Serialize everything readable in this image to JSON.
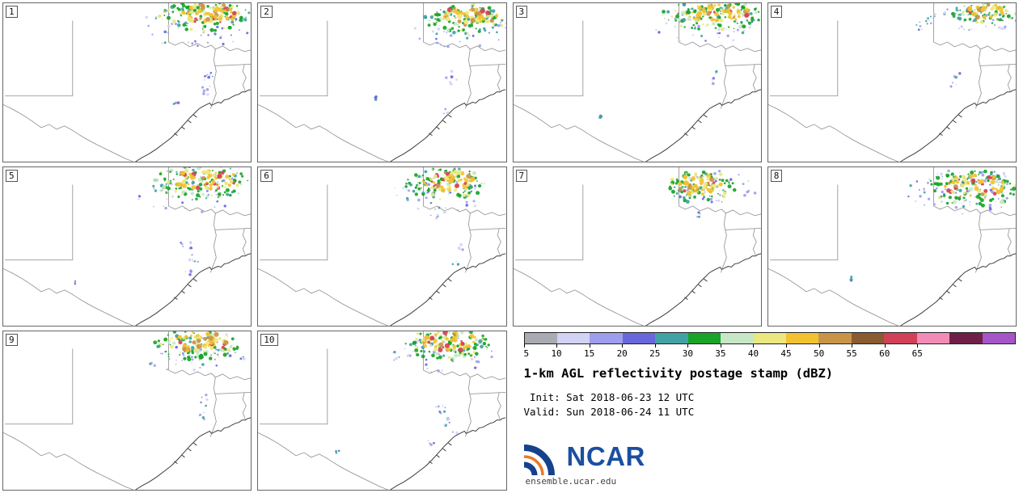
{
  "product": {
    "title": "1-km AGL reflectivity postage stamp (dBZ)",
    "init_line": " Init: Sat 2018-06-23 12 UTC",
    "valid_line": "Valid: Sun 2018-06-24 11 UTC"
  },
  "footer": {
    "logo_text": "NCAR",
    "url": "ensemble.ucar.edu"
  },
  "colorbar": {
    "ticks": [
      "5",
      "10",
      "15",
      "20",
      "25",
      "30",
      "35",
      "40",
      "45",
      "50",
      "55",
      "60",
      "65"
    ],
    "colors": [
      "#aaaab2",
      "#d2d2f4",
      "#9e9eee",
      "#6868dc",
      "#40a2a2",
      "#18a428",
      "#c6e8c6",
      "#eae87e",
      "#f2c230",
      "#ca9448",
      "#8a5a30",
      "#d24058",
      "#f28cb6",
      "#702048",
      "#a455c8"
    ]
  },
  "palettes": {
    "g": [
      "#18a428",
      "#18a428",
      "#c6e8c6",
      "#40a2a2",
      "#eae87e"
    ],
    "w": [
      "#f2c230",
      "#eae87e",
      "#ca9448",
      "#f2c230",
      "#d24058"
    ],
    "f": [
      "#9e9eee",
      "#d2d2f4",
      "#6868dc",
      "#40a2a2"
    ],
    "t": [
      "#40a2a2",
      "#6868dc"
    ]
  },
  "map": {
    "state_color": "#9a9a9a",
    "coast_color": "#3c3c3c",
    "state": [
      "M86,22 L86,117 L2,117",
      "M205,0 L205,49 L213,53 L222,49 L231,55 L241,51 L250,56 L258,53 L263,58 L272,54 L281,60 L290,57 L299,61 L307,59",
      "M263,58 L261,72 L264,86 L261,100 L264,114 L259,127 L257,133",
      "M262,79 L307,77",
      "M299,77 L297,86 L301,94 L297,103 L300,111",
      "M0,128 L12,134 L24,141 L36,149 L47,157 L57,153 L66,159 L76,155 L85,160 L94,166 L104,172 L115,178 L127,184 L139,190 L151,196 L161,200"
    ],
    "coast": [
      "M164,200 L172,195 L181,190 L190,184 L199,177 L208,170 L216,162 L224,153 L231,145 L238,138 L243,133 L248,130 L252,128 L256,126 L258,129 L262,127 L266,125 L270,126 L274,122 L279,121 L284,118 L288,116 L292,115 L296,112 L300,112 L303,110 L307,109",
      "M212,164 L216,167 M221,156 L225,159 M229,148 L233,151 M236,141 L240,144"
    ]
  },
  "panels": [
    {
      "label": "1",
      "clusters": [
        [
          "f",
          240,
          30,
          72,
          26,
          48
        ],
        [
          "g",
          250,
          17,
          58,
          20,
          115
        ],
        [
          "w",
          255,
          13,
          38,
          12,
          60
        ],
        [
          "f",
          253,
          94,
          9,
          13,
          9
        ],
        [
          "f",
          248,
          113,
          6,
          8,
          6
        ],
        [
          "f",
          214,
          126,
          5,
          4,
          4
        ]
      ]
    },
    {
      "label": "2",
      "clusters": [
        [
          "f",
          250,
          32,
          62,
          24,
          42
        ],
        [
          "g",
          258,
          20,
          52,
          19,
          105
        ],
        [
          "w",
          262,
          16,
          34,
          12,
          55
        ],
        [
          "f",
          240,
          93,
          7,
          9,
          6
        ],
        [
          "t",
          147,
          119,
          4,
          3,
          3
        ],
        [
          "f",
          232,
          135,
          5,
          5,
          3
        ]
      ]
    },
    {
      "label": "3",
      "clusters": [
        [
          "f",
          237,
          28,
          72,
          23,
          45
        ],
        [
          "g",
          246,
          15,
          62,
          19,
          115
        ],
        [
          "w",
          251,
          12,
          42,
          11,
          58
        ],
        [
          "f",
          247,
          93,
          7,
          9,
          6
        ],
        [
          "t",
          107,
          142,
          4,
          3,
          3
        ]
      ]
    },
    {
      "label": "4",
      "clusters": [
        [
          "f",
          253,
          22,
          56,
          18,
          36
        ],
        [
          "g",
          268,
          13,
          40,
          14,
          75
        ],
        [
          "w",
          272,
          10,
          25,
          9,
          32
        ],
        [
          "f",
          193,
          28,
          10,
          8,
          8
        ],
        [
          "f",
          235,
          92,
          6,
          6,
          5
        ],
        [
          "f",
          230,
          103,
          5,
          5,
          4
        ]
      ]
    },
    {
      "label": "5",
      "clusters": [
        [
          "f",
          235,
          32,
          72,
          26,
          48
        ],
        [
          "g",
          245,
          19,
          62,
          22,
          115
        ],
        [
          "w",
          250,
          15,
          40,
          13,
          58
        ],
        [
          "f",
          228,
          97,
          8,
          10,
          8
        ],
        [
          "f",
          236,
          117,
          7,
          8,
          6
        ],
        [
          "f",
          230,
          133,
          5,
          5,
          4
        ],
        [
          "t",
          92,
          146,
          4,
          3,
          3
        ]
      ]
    },
    {
      "label": "6",
      "clusters": [
        [
          "f",
          225,
          33,
          60,
          24,
          42
        ],
        [
          "g",
          232,
          21,
          50,
          20,
          105
        ],
        [
          "w",
          236,
          17,
          32,
          12,
          52
        ],
        [
          "f",
          220,
          60,
          7,
          7,
          6
        ],
        [
          "f",
          252,
          101,
          6,
          7,
          5
        ],
        [
          "f",
          245,
          121,
          4,
          4,
          3
        ]
      ]
    },
    {
      "label": "7",
      "clusters": [
        [
          "f",
          248,
          24,
          56,
          23,
          42
        ],
        [
          "g",
          232,
          25,
          43,
          20,
          90
        ],
        [
          "w",
          230,
          22,
          27,
          13,
          48
        ],
        [
          "f",
          228,
          59,
          6,
          5,
          4
        ]
      ]
    },
    {
      "label": "8",
      "clusters": [
        [
          "f",
          244,
          31,
          72,
          28,
          75
        ],
        [
          "f",
          271,
          14,
          36,
          11,
          28
        ],
        [
          "g",
          252,
          27,
          56,
          24,
          105
        ],
        [
          "w",
          256,
          24,
          37,
          15,
          58
        ],
        [
          "t",
          103,
          140,
          4,
          3,
          3
        ]
      ]
    },
    {
      "label": "9",
      "clusters": [
        [
          "f",
          233,
          30,
          67,
          25,
          42
        ],
        [
          "g",
          240,
          17,
          56,
          20,
          105
        ],
        [
          "w",
          244,
          13,
          37,
          12,
          52
        ],
        [
          "f",
          250,
          87,
          7,
          8,
          6
        ],
        [
          "f",
          246,
          107,
          6,
          7,
          5
        ]
      ]
    },
    {
      "label": "10",
      "clusters": [
        [
          "f",
          229,
          30,
          63,
          25,
          47
        ],
        [
          "g",
          235,
          17,
          53,
          20,
          105
        ],
        [
          "w",
          238,
          13,
          35,
          12,
          52
        ],
        [
          "f",
          228,
          97,
          8,
          10,
          8
        ],
        [
          "f",
          232,
          117,
          7,
          8,
          6
        ],
        [
          "f",
          215,
          139,
          5,
          5,
          4
        ],
        [
          "f",
          245,
          129,
          4,
          4,
          3
        ],
        [
          "t",
          100,
          152,
          4,
          3,
          3
        ]
      ]
    }
  ]
}
